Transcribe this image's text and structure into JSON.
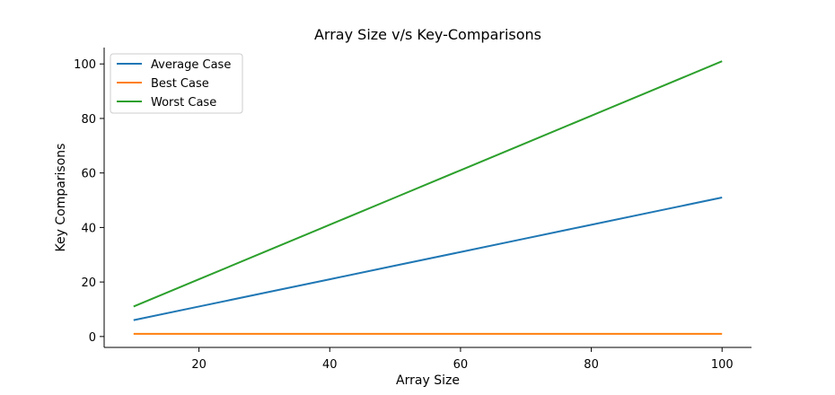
{
  "chart_data": {
    "type": "line",
    "title": "Array Size v/s Key-Comparisons",
    "xlabel": "Array Size",
    "ylabel": "Key Comparisons",
    "xlim": [
      5.5,
      104.5
    ],
    "ylim": [
      -4,
      106
    ],
    "x_ticks": [
      20,
      40,
      60,
      80,
      100
    ],
    "y_ticks": [
      0,
      20,
      40,
      60,
      80,
      100
    ],
    "grid": false,
    "legend_position": "top-left",
    "x": [
      10,
      20,
      30,
      40,
      50,
      60,
      70,
      80,
      90,
      100
    ],
    "series": [
      {
        "name": "Average Case",
        "color": "#1f77b4",
        "values": [
          6,
          11,
          16,
          21,
          26,
          31,
          36,
          41,
          46,
          51
        ]
      },
      {
        "name": "Best Case",
        "color": "#ff7f0e",
        "values": [
          1,
          1,
          1,
          1,
          1,
          1,
          1,
          1,
          1,
          1
        ]
      },
      {
        "name": "Worst Case",
        "color": "#2ca02c",
        "values": [
          11,
          21,
          31,
          41,
          51,
          61,
          71,
          81,
          91,
          101
        ]
      }
    ]
  }
}
